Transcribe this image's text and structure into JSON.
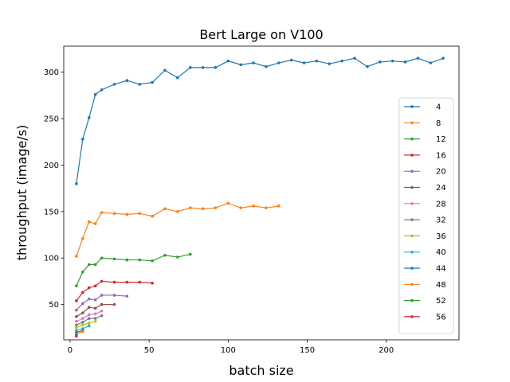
{
  "chart_data": {
    "type": "line",
    "title": "Bert Large on V100",
    "xlabel": "batch size",
    "ylabel": "throughput (image/s)",
    "xlim": [
      -4,
      246
    ],
    "ylim": [
      12,
      328
    ],
    "xticks": [
      0,
      50,
      100,
      150,
      200
    ],
    "yticks": [
      50,
      100,
      150,
      200,
      250,
      300
    ],
    "grid": false,
    "legend_position": "right",
    "series": [
      {
        "name": "4",
        "color": "#1f77b4",
        "x": [
          4,
          8,
          12,
          16,
          20,
          28,
          36,
          44,
          52,
          60,
          68,
          76,
          84,
          92,
          100,
          108,
          116,
          124,
          132,
          140,
          148,
          156,
          164,
          172,
          180,
          188,
          196,
          204,
          212,
          220,
          228,
          236
        ],
        "y": [
          180,
          228,
          251,
          276,
          281,
          287,
          291,
          287,
          289,
          302,
          294,
          305,
          305,
          305,
          312,
          308,
          310,
          306,
          310,
          313,
          310,
          312,
          309,
          312,
          315,
          306,
          311,
          312,
          311,
          315,
          310,
          315
        ]
      },
      {
        "name": "8",
        "color": "#ff7f0e",
        "x": [
          4,
          8,
          12,
          16,
          20,
          28,
          36,
          44,
          52,
          60,
          68,
          76,
          84,
          92,
          100,
          108,
          116,
          124,
          132
        ],
        "y": [
          102,
          121,
          139,
          137,
          149,
          148,
          147,
          148,
          145,
          153,
          150,
          154,
          153,
          154,
          159,
          154,
          156,
          154,
          156
        ]
      },
      {
        "name": "12",
        "color": "#2ca02c",
        "x": [
          4,
          8,
          12,
          16,
          20,
          28,
          36,
          44,
          52,
          60,
          68,
          76
        ],
        "y": [
          70,
          85,
          93,
          93,
          100,
          99,
          98,
          98,
          97,
          103,
          101,
          104
        ]
      },
      {
        "name": "16",
        "color": "#d62728",
        "x": [
          4,
          8,
          12,
          16,
          20,
          28,
          36,
          44,
          52
        ],
        "y": [
          54,
          63,
          68,
          70,
          75,
          74,
          74,
          74,
          73
        ]
      },
      {
        "name": "20",
        "color": "#9467bd",
        "x": [
          4,
          8,
          12,
          16,
          20,
          28,
          36
        ],
        "y": [
          44,
          51,
          56,
          55,
          60,
          60,
          59
        ]
      },
      {
        "name": "24",
        "color": "#8c564b",
        "x": [
          4,
          8,
          12,
          16,
          20,
          28
        ],
        "y": [
          37,
          41,
          47,
          46,
          50,
          50
        ]
      },
      {
        "name": "28",
        "color": "#e377c2",
        "x": [
          4,
          8,
          12,
          16,
          20
        ],
        "y": [
          32,
          35,
          39,
          40,
          43
        ]
      },
      {
        "name": "32",
        "color": "#7f7f7f",
        "x": [
          4,
          8,
          12,
          16,
          20
        ],
        "y": [
          28,
          31,
          35,
          35,
          38
        ]
      },
      {
        "name": "36",
        "color": "#bcbd22",
        "x": [
          4,
          8,
          12,
          16
        ],
        "y": [
          25,
          28,
          30,
          32
        ]
      },
      {
        "name": "40",
        "color": "#17becf",
        "x": [
          4,
          8,
          12
        ],
        "y": [
          22,
          24,
          27
        ]
      },
      {
        "name": "44",
        "color": "#1f77b4",
        "x": [
          4,
          8
        ],
        "y": [
          20,
          22
        ]
      },
      {
        "name": "48",
        "color": "#ff7f0e",
        "x": [
          4,
          8
        ],
        "y": [
          18,
          21
        ]
      },
      {
        "name": "52",
        "color": "#2ca02c",
        "x": [
          4
        ],
        "y": [
          17
        ]
      },
      {
        "name": "56",
        "color": "#d62728",
        "x": [
          4
        ],
        "y": [
          16
        ]
      }
    ]
  }
}
